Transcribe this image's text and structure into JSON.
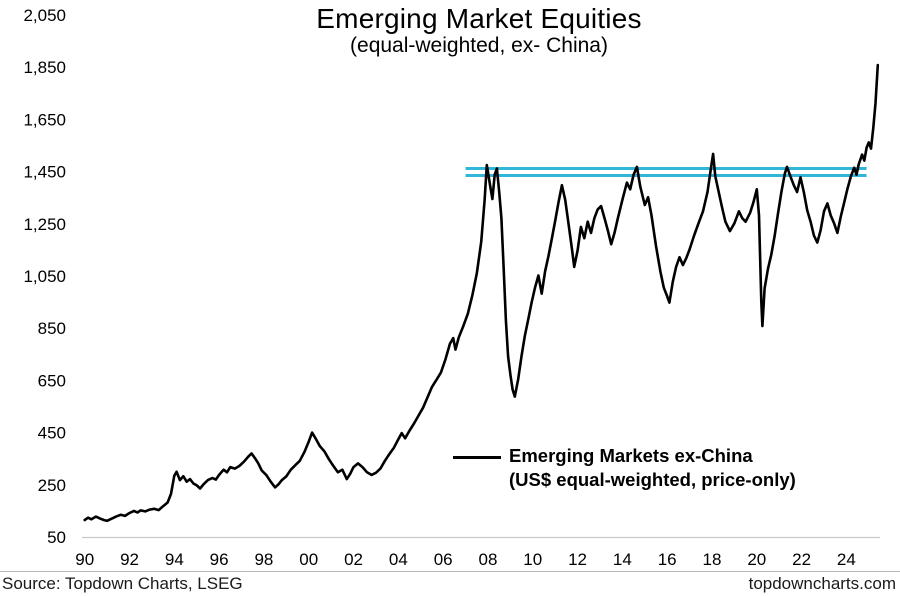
{
  "footer": {
    "source": "Source: Topdown Charts, LSEG",
    "website": "topdowncharts.com"
  },
  "colors": {
    "series": "#000000",
    "resistance": "#31b6d8",
    "axis_line": "#c9c9c9",
    "text": "#000000",
    "background": "#ffffff"
  },
  "chart_data": {
    "type": "line",
    "title": "Emerging Market Equities",
    "subtitle": "(equal-weighted, ex- China)",
    "xlabel": "",
    "ylabel": "",
    "grid": false,
    "legend_position": "inside-lower-center",
    "legend": {
      "line1": "Emerging Markets ex-China",
      "line2": "(US$ equal-weighted, price-only)"
    },
    "x_domain": [
      1989.7,
      2025.5
    ],
    "ylim": [
      50,
      2050
    ],
    "y_ticks": {
      "values": [
        50,
        250,
        450,
        650,
        850,
        1050,
        1250,
        1450,
        1650,
        1850,
        2050
      ],
      "labels": [
        "50",
        "250",
        "450",
        "650",
        "850",
        "1,050",
        "1,250",
        "1,450",
        "1,650",
        "1,850",
        "2,050"
      ]
    },
    "x_ticks": {
      "values": [
        1990,
        1992,
        1994,
        1996,
        1998,
        2000,
        2002,
        2004,
        2006,
        2008,
        2010,
        2012,
        2014,
        2016,
        2018,
        2020,
        2022,
        2024
      ],
      "labels": [
        "90",
        "92",
        "94",
        "96",
        "98",
        "00",
        "02",
        "04",
        "06",
        "08",
        "10",
        "12",
        "14",
        "16",
        "18",
        "20",
        "22",
        "24"
      ]
    },
    "resistance_lines": {
      "description": "double horizontal resistance band",
      "values": [
        1462,
        1435
      ],
      "x_start": 2007.0,
      "x_end": 2024.9,
      "color": "#31b6d8",
      "stroke_width": 3
    },
    "series": [
      {
        "name": "Emerging Markets ex-China (US$ equal-weighted, price-only)",
        "color": "#000000",
        "points": [
          [
            1990.0,
            115
          ],
          [
            1990.15,
            124
          ],
          [
            1990.3,
            118
          ],
          [
            1990.5,
            128
          ],
          [
            1990.7,
            120
          ],
          [
            1990.85,
            115
          ],
          [
            1991.0,
            112
          ],
          [
            1991.2,
            120
          ],
          [
            1991.4,
            128
          ],
          [
            1991.6,
            135
          ],
          [
            1991.8,
            131
          ],
          [
            1992.0,
            142
          ],
          [
            1992.2,
            150
          ],
          [
            1992.35,
            144
          ],
          [
            1992.5,
            152
          ],
          [
            1992.7,
            148
          ],
          [
            1992.9,
            155
          ],
          [
            1993.1,
            158
          ],
          [
            1993.3,
            153
          ],
          [
            1993.5,
            168
          ],
          [
            1993.7,
            182
          ],
          [
            1993.85,
            215
          ],
          [
            1994.0,
            285
          ],
          [
            1994.1,
            300
          ],
          [
            1994.25,
            268
          ],
          [
            1994.4,
            283
          ],
          [
            1994.55,
            262
          ],
          [
            1994.7,
            272
          ],
          [
            1994.85,
            255
          ],
          [
            1995.0,
            248
          ],
          [
            1995.15,
            236
          ],
          [
            1995.3,
            252
          ],
          [
            1995.5,
            268
          ],
          [
            1995.7,
            276
          ],
          [
            1995.85,
            270
          ],
          [
            1996.0,
            288
          ],
          [
            1996.2,
            308
          ],
          [
            1996.35,
            298
          ],
          [
            1996.5,
            318
          ],
          [
            1996.7,
            312
          ],
          [
            1996.9,
            322
          ],
          [
            1997.1,
            338
          ],
          [
            1997.3,
            358
          ],
          [
            1997.45,
            370
          ],
          [
            1997.6,
            352
          ],
          [
            1997.75,
            332
          ],
          [
            1997.9,
            305
          ],
          [
            1998.1,
            288
          ],
          [
            1998.3,
            262
          ],
          [
            1998.5,
            240
          ],
          [
            1998.65,
            252
          ],
          [
            1998.8,
            268
          ],
          [
            1999.0,
            282
          ],
          [
            1999.2,
            308
          ],
          [
            1999.4,
            325
          ],
          [
            1999.6,
            342
          ],
          [
            1999.8,
            375
          ],
          [
            2000.0,
            415
          ],
          [
            2000.15,
            450
          ],
          [
            2000.3,
            428
          ],
          [
            2000.5,
            398
          ],
          [
            2000.7,
            378
          ],
          [
            2000.9,
            348
          ],
          [
            2001.1,
            322
          ],
          [
            2001.3,
            298
          ],
          [
            2001.5,
            308
          ],
          [
            2001.7,
            272
          ],
          [
            2001.85,
            292
          ],
          [
            2002.0,
            318
          ],
          [
            2002.2,
            332
          ],
          [
            2002.4,
            318
          ],
          [
            2002.6,
            298
          ],
          [
            2002.8,
            288
          ],
          [
            2003.0,
            296
          ],
          [
            2003.2,
            312
          ],
          [
            2003.4,
            342
          ],
          [
            2003.6,
            368
          ],
          [
            2003.8,
            392
          ],
          [
            2004.0,
            425
          ],
          [
            2004.15,
            448
          ],
          [
            2004.3,
            428
          ],
          [
            2004.5,
            458
          ],
          [
            2004.7,
            485
          ],
          [
            2004.9,
            515
          ],
          [
            2005.1,
            545
          ],
          [
            2005.3,
            585
          ],
          [
            2005.5,
            625
          ],
          [
            2005.7,
            652
          ],
          [
            2005.9,
            680
          ],
          [
            2006.1,
            730
          ],
          [
            2006.3,
            790
          ],
          [
            2006.45,
            812
          ],
          [
            2006.55,
            768
          ],
          [
            2006.7,
            815
          ],
          [
            2006.9,
            858
          ],
          [
            2007.1,
            905
          ],
          [
            2007.3,
            975
          ],
          [
            2007.5,
            1060
          ],
          [
            2007.7,
            1180
          ],
          [
            2007.85,
            1340
          ],
          [
            2007.95,
            1475
          ],
          [
            2008.1,
            1395
          ],
          [
            2008.2,
            1345
          ],
          [
            2008.3,
            1438
          ],
          [
            2008.4,
            1462
          ],
          [
            2008.5,
            1372
          ],
          [
            2008.6,
            1272
          ],
          [
            2008.7,
            1085
          ],
          [
            2008.8,
            880
          ],
          [
            2008.9,
            742
          ],
          [
            2009.0,
            672
          ],
          [
            2009.1,
            615
          ],
          [
            2009.2,
            588
          ],
          [
            2009.35,
            655
          ],
          [
            2009.5,
            745
          ],
          [
            2009.65,
            822
          ],
          [
            2009.8,
            885
          ],
          [
            2009.95,
            948
          ],
          [
            2010.1,
            1005
          ],
          [
            2010.25,
            1052
          ],
          [
            2010.4,
            982
          ],
          [
            2010.55,
            1068
          ],
          [
            2010.7,
            1125
          ],
          [
            2010.85,
            1192
          ],
          [
            2011.0,
            1262
          ],
          [
            2011.15,
            1332
          ],
          [
            2011.3,
            1398
          ],
          [
            2011.45,
            1342
          ],
          [
            2011.6,
            1248
          ],
          [
            2011.75,
            1152
          ],
          [
            2011.85,
            1085
          ],
          [
            2012.0,
            1148
          ],
          [
            2012.15,
            1238
          ],
          [
            2012.3,
            1195
          ],
          [
            2012.45,
            1258
          ],
          [
            2012.6,
            1215
          ],
          [
            2012.75,
            1272
          ],
          [
            2012.9,
            1305
          ],
          [
            2013.05,
            1318
          ],
          [
            2013.2,
            1272
          ],
          [
            2013.35,
            1225
          ],
          [
            2013.5,
            1172
          ],
          [
            2013.65,
            1215
          ],
          [
            2013.8,
            1272
          ],
          [
            2014.0,
            1342
          ],
          [
            2014.2,
            1408
          ],
          [
            2014.35,
            1382
          ],
          [
            2014.5,
            1438
          ],
          [
            2014.65,
            1468
          ],
          [
            2014.8,
            1392
          ],
          [
            2015.0,
            1322
          ],
          [
            2015.15,
            1352
          ],
          [
            2015.3,
            1282
          ],
          [
            2015.5,
            1165
          ],
          [
            2015.7,
            1065
          ],
          [
            2015.85,
            1005
          ],
          [
            2016.0,
            972
          ],
          [
            2016.1,
            948
          ],
          [
            2016.25,
            1028
          ],
          [
            2016.4,
            1085
          ],
          [
            2016.55,
            1122
          ],
          [
            2016.7,
            1092
          ],
          [
            2016.85,
            1118
          ],
          [
            2017.0,
            1152
          ],
          [
            2017.2,
            1205
          ],
          [
            2017.4,
            1252
          ],
          [
            2017.6,
            1298
          ],
          [
            2017.8,
            1372
          ],
          [
            2017.95,
            1462
          ],
          [
            2018.05,
            1518
          ],
          [
            2018.15,
            1432
          ],
          [
            2018.3,
            1372
          ],
          [
            2018.45,
            1312
          ],
          [
            2018.6,
            1258
          ],
          [
            2018.8,
            1222
          ],
          [
            2019.0,
            1252
          ],
          [
            2019.2,
            1298
          ],
          [
            2019.35,
            1272
          ],
          [
            2019.5,
            1258
          ],
          [
            2019.7,
            1292
          ],
          [
            2019.85,
            1332
          ],
          [
            2020.0,
            1382
          ],
          [
            2020.1,
            1282
          ],
          [
            2020.2,
            952
          ],
          [
            2020.25,
            858
          ],
          [
            2020.35,
            1002
          ],
          [
            2020.5,
            1078
          ],
          [
            2020.65,
            1132
          ],
          [
            2020.8,
            1205
          ],
          [
            2020.95,
            1292
          ],
          [
            2021.1,
            1372
          ],
          [
            2021.25,
            1442
          ],
          [
            2021.35,
            1468
          ],
          [
            2021.5,
            1432
          ],
          [
            2021.65,
            1398
          ],
          [
            2021.8,
            1372
          ],
          [
            2021.95,
            1428
          ],
          [
            2022.1,
            1372
          ],
          [
            2022.25,
            1302
          ],
          [
            2022.4,
            1258
          ],
          [
            2022.55,
            1205
          ],
          [
            2022.7,
            1178
          ],
          [
            2022.85,
            1225
          ],
          [
            2023.0,
            1298
          ],
          [
            2023.15,
            1328
          ],
          [
            2023.3,
            1282
          ],
          [
            2023.45,
            1252
          ],
          [
            2023.6,
            1215
          ],
          [
            2023.75,
            1278
          ],
          [
            2023.9,
            1332
          ],
          [
            2024.05,
            1385
          ],
          [
            2024.2,
            1432
          ],
          [
            2024.35,
            1465
          ],
          [
            2024.45,
            1438
          ],
          [
            2024.55,
            1478
          ],
          [
            2024.7,
            1515
          ],
          [
            2024.8,
            1492
          ],
          [
            2024.9,
            1542
          ],
          [
            2025.0,
            1562
          ],
          [
            2025.1,
            1538
          ],
          [
            2025.2,
            1618
          ],
          [
            2025.3,
            1712
          ],
          [
            2025.4,
            1858
          ]
        ]
      }
    ]
  }
}
